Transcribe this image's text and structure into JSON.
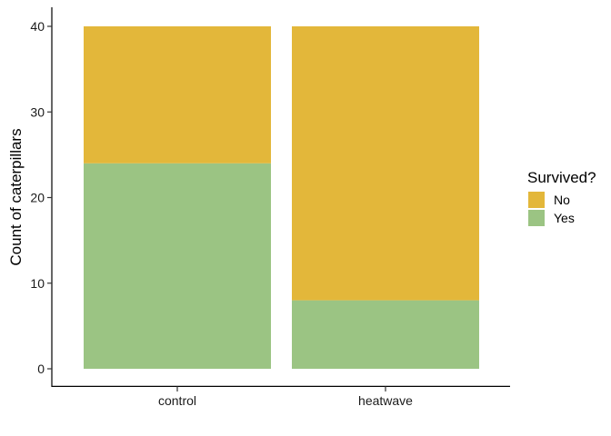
{
  "chart_data": {
    "type": "bar",
    "stacked": true,
    "categories": [
      "control",
      "heatwave"
    ],
    "series": [
      {
        "name": "Yes",
        "values": [
          24,
          8
        ],
        "color": "#9bc483"
      },
      {
        "name": "No",
        "values": [
          16,
          32
        ],
        "color": "#e3b73a"
      }
    ],
    "ylabel": "Count of caterpillars",
    "xlabel": "",
    "ylim": [
      0,
      40
    ],
    "yticks": [
      0,
      10,
      20,
      30,
      40
    ],
    "grid": false,
    "legend": {
      "title": "Survived?",
      "position": "right",
      "entries": [
        "No",
        "Yes"
      ]
    }
  }
}
